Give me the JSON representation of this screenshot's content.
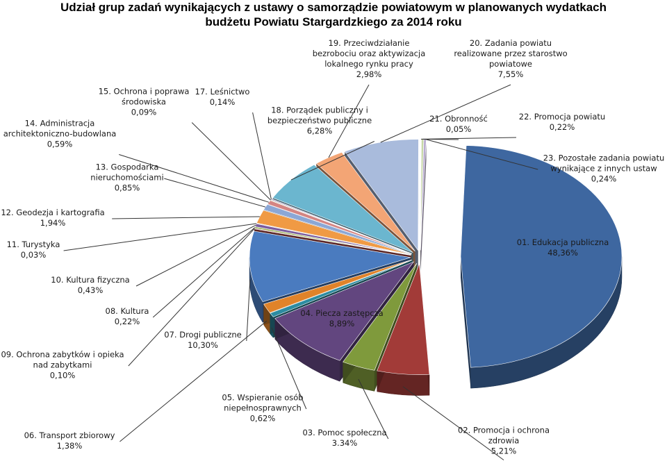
{
  "chart_data": {
    "type": "pie",
    "title": [
      "Udział grup zadań wynikających z ustawy o samorządzie powiatowym w planowanych wydatkach",
      "budżetu Powiatu Stargardzkiego za 2014 roku"
    ],
    "slices": [
      {
        "label": [
          "01. Edukacja publiczna"
        ],
        "value_text": "48,36%",
        "value": 48.36,
        "color": "#3e67a0"
      },
      {
        "label": [
          "02. Promocja i ochrona",
          "zdrowia"
        ],
        "value_text": "5,21%",
        "value": 5.21,
        "color": "#a23b38"
      },
      {
        "label": [
          "03. Pomoc społeczna"
        ],
        "value_text": "3.34%",
        "value": 3.34,
        "color": "#7f9a3c"
      },
      {
        "label": [
          "04. Piecza zastępcza"
        ],
        "value_text": "8,89%",
        "value": 8.89,
        "color": "#62467f"
      },
      {
        "label": [
          "05. Wspieranie osób",
          "niepełnosprawnych"
        ],
        "value_text": "0,62%",
        "value": 0.62,
        "color": "#2d8ca1"
      },
      {
        "label": [
          "06. Transport zbiorowy"
        ],
        "value_text": "1,38%",
        "value": 1.38,
        "color": "#e0832a"
      },
      {
        "label": [
          "07. Drogi publiczne"
        ],
        "value_text": "10,30%",
        "value": 10.3,
        "color": "#4a7bbf"
      },
      {
        "label": [
          "09. Ochrona zabytków i opieka",
          "nad zabytkami"
        ],
        "value_text": "0,10%",
        "value": 0.1,
        "color": "#b44a47"
      },
      {
        "label": [
          "08. Kultura"
        ],
        "value_text": "0,22%",
        "value": 0.22,
        "color": "#94b056"
      },
      {
        "label": [
          "10. Kultura fizyczna"
        ],
        "value_text": "0,43%",
        "value": 0.43,
        "color": "#7b5c9e"
      },
      {
        "label": [
          "11. Turystyka"
        ],
        "value_text": "0,03%",
        "value": 0.03,
        "color": "#3fa4bb"
      },
      {
        "label": [
          "12. Geodezja i kartografia"
        ],
        "value_text": "1,94%",
        "value": 1.94,
        "color": "#f09a44"
      },
      {
        "label": [
          "13. Gospodarka",
          "nieruchomościami"
        ],
        "value_text": "0,85%",
        "value": 0.85,
        "color": "#8ba7d6"
      },
      {
        "label": [
          "14. Administracja",
          "architektoniczno-budowlana"
        ],
        "value_text": "0,59%",
        "value": 0.59,
        "color": "#d48583"
      },
      {
        "label": [
          "15. Ochrona i poprawa",
          "środowiska"
        ],
        "value_text": "0,09%",
        "value": 0.09,
        "color": "#b8cc8a"
      },
      {
        "label": [
          "17. Leśnictwo"
        ],
        "value_text": "0,14%",
        "value": 0.14,
        "color": "#a592c0"
      },
      {
        "label": [
          "18. Porządek publiczny i",
          "bezpieczeństwo publiczne"
        ],
        "value_text": "6,28%",
        "value": 6.28,
        "color": "#6bb6cf"
      },
      {
        "label": [
          "19. Przeciwdziałanie",
          "bezrobociu oraz aktywizacja",
          "lokalnego rynku pracy"
        ],
        "value_text": "2,98%",
        "value": 2.98,
        "color": "#f3a575"
      },
      {
        "label": [
          "20. Zadania powiatu",
          "realizowane przez starostwo",
          "powiatowe"
        ],
        "value_text": "7,55%",
        "value": 7.55,
        "color": "#a9bbdc"
      },
      {
        "label": [
          "21. Obronność"
        ],
        "value_text": "0,05%",
        "value": 0.05,
        "color": "#dba5a4"
      },
      {
        "label": [
          "22. Promocja powiatu"
        ],
        "value_text": "0,22%",
        "value": 0.22,
        "color": "#c6d7a6"
      },
      {
        "label": [
          "23. Pozostałe zadania powiatu",
          "wynikające z innych ustaw"
        ],
        "value_text": "0,24%",
        "value": 0.24,
        "color": "#b9acd0"
      }
    ]
  }
}
